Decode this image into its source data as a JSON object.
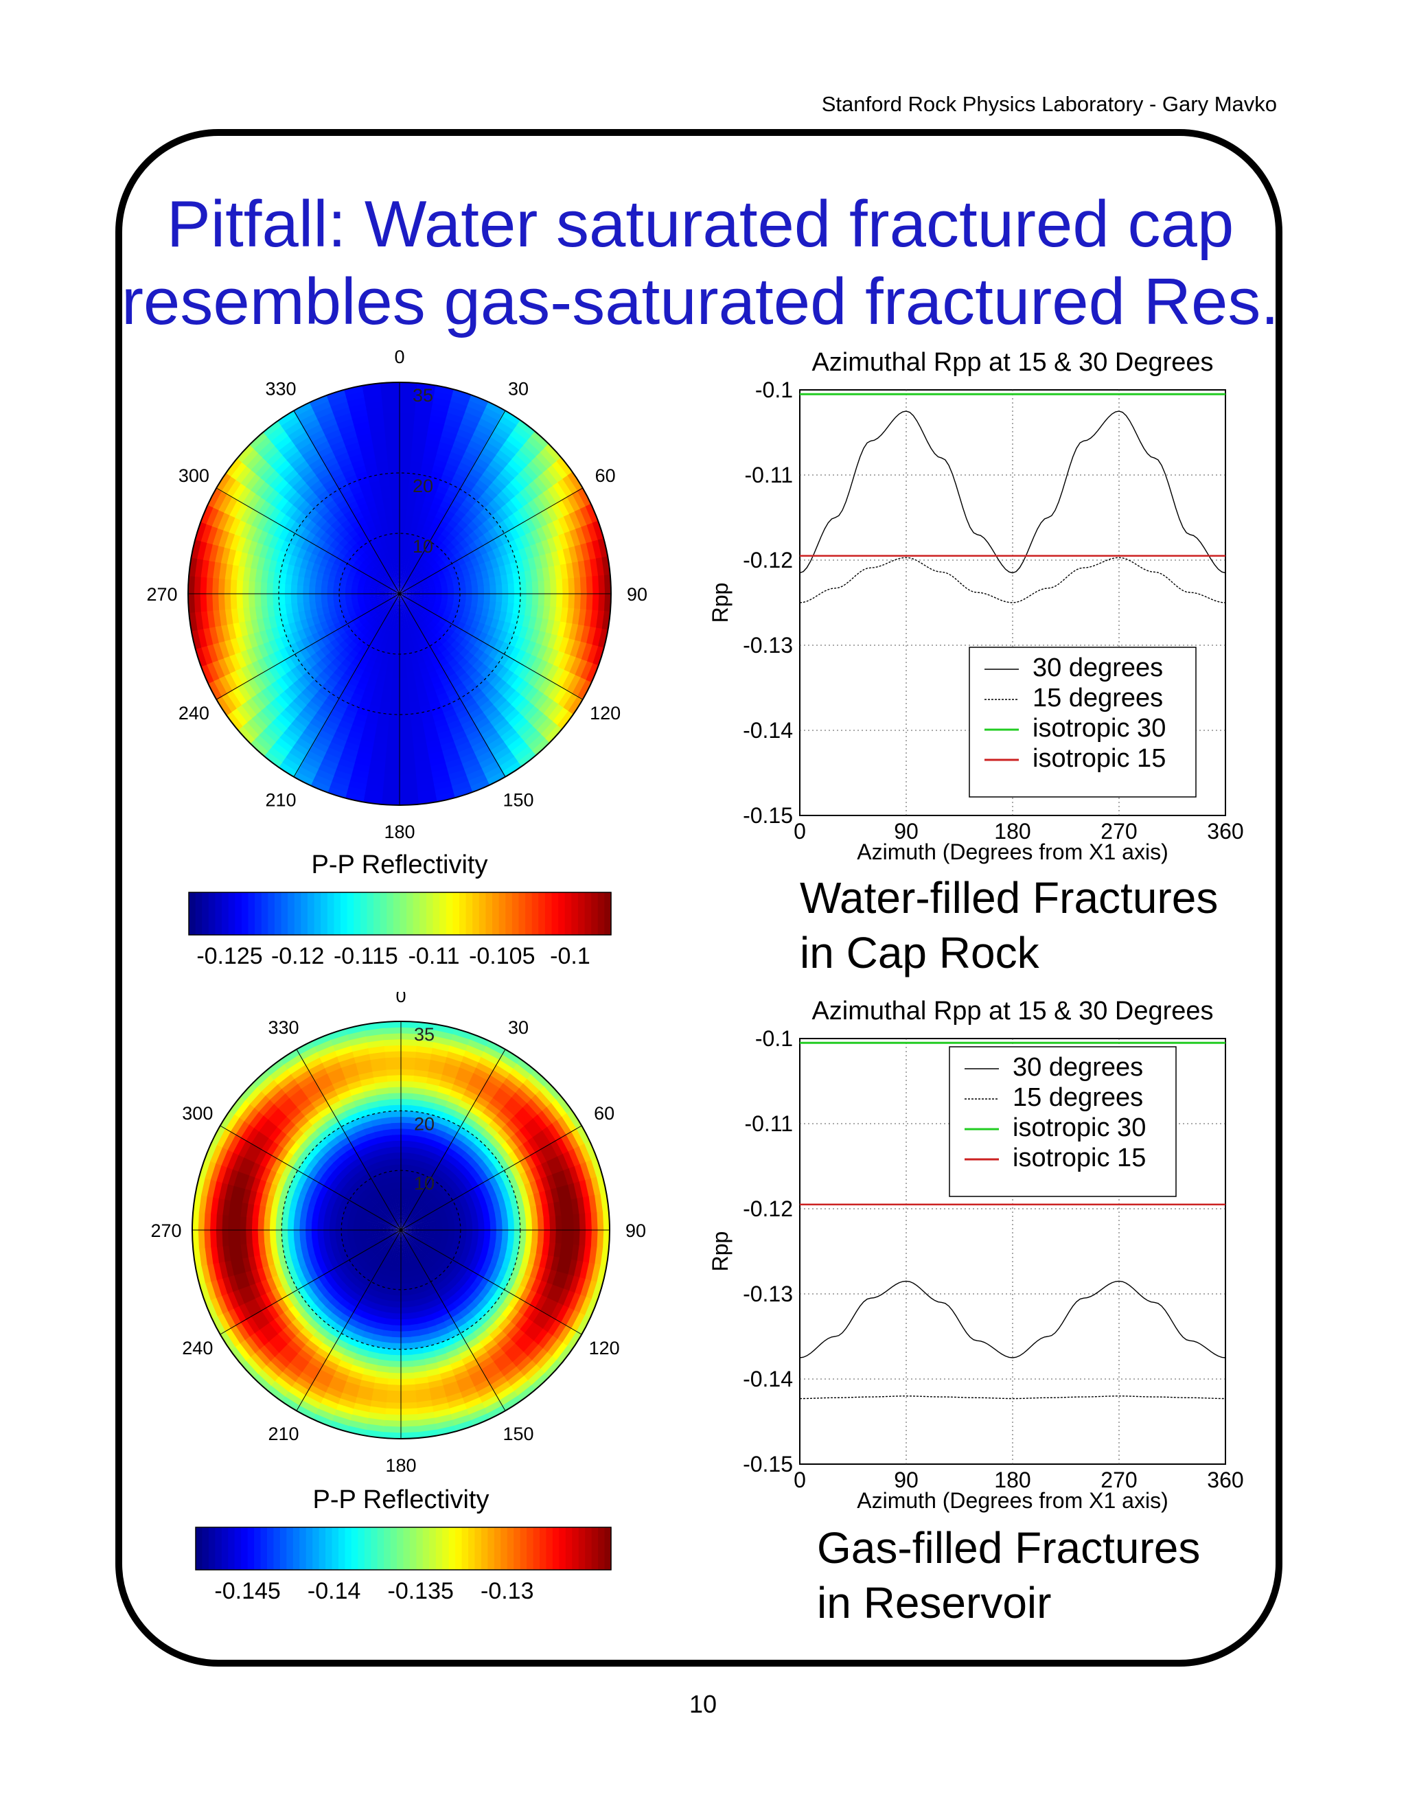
{
  "header": {
    "credit": "Stanford Rock Physics Laboratory -  Gary Mavko"
  },
  "title": {
    "line1": "Pitfall:  Water saturated fractured cap",
    "line2": "resembles gas-saturated fractured Res."
  },
  "captions": {
    "water": {
      "line1": "Water-filled Fractures",
      "line2": "in Cap Rock"
    },
    "gas": {
      "line1": "Gas-filled Fractures",
      "line2": "in Reservoir"
    }
  },
  "page_number": "10",
  "colors": {
    "title": "#1c1cc4",
    "isotropic30": "#22cc22",
    "isotropic15": "#cc2222",
    "curves": "#000000"
  },
  "chart_data": [
    {
      "type": "heatmap",
      "subtype": "polar",
      "label": "P-P Reflectivity",
      "angle_labels": [
        "0",
        "30",
        "60",
        "90",
        "120",
        "150",
        "180",
        "210",
        "240",
        "270",
        "300",
        "330"
      ],
      "radial_labels": [
        "10",
        "20",
        "35"
      ],
      "colorbar": {
        "ticks": [
          "-0.125",
          "-0.12",
          "-0.115",
          "-0.11",
          "-0.105",
          "-0.1"
        ],
        "range": [
          -0.128,
          -0.097
        ]
      },
      "field": {
        "base": -0.125,
        "amplitude": 0.028,
        "pattern": "sin2(azimuth) * (incidence/35)^2"
      }
    },
    {
      "type": "line",
      "title": "Azimuthal Rpp at 15 & 30 Degrees",
      "xlabel": "Azimuth (Degrees from X1 axis)",
      "ylabel": "Rpp",
      "xlim": [
        0,
        360
      ],
      "ylim": [
        -0.15,
        -0.1
      ],
      "xticks": [
        "0",
        "90",
        "180",
        "270",
        "360"
      ],
      "yticks": [
        "-0.1",
        "-0.11",
        "-0.12",
        "-0.13",
        "-0.14",
        "-0.15"
      ],
      "grid": true,
      "legend_position": "lower-right",
      "legend": [
        "30 degrees",
        "15 degrees",
        "isotropic 30",
        "isotropic 15"
      ],
      "x": [
        0,
        30,
        60,
        90,
        120,
        150,
        180,
        210,
        240,
        270,
        300,
        330,
        360
      ],
      "series": [
        {
          "name": "30 degrees",
          "values": [
            -0.1215,
            -0.115,
            -0.106,
            -0.1025,
            -0.108,
            -0.117,
            -0.1215,
            -0.115,
            -0.106,
            -0.1025,
            -0.108,
            -0.117,
            -0.1215
          ]
        },
        {
          "name": "15 degrees",
          "values": [
            -0.125,
            -0.1233,
            -0.1209,
            -0.1197,
            -0.1214,
            -0.1238,
            -0.125,
            -0.1233,
            -0.1209,
            -0.1197,
            -0.1214,
            -0.1238,
            -0.125
          ]
        },
        {
          "name": "isotropic 30",
          "values": [
            -0.1005,
            -0.1005,
            -0.1005,
            -0.1005,
            -0.1005,
            -0.1005,
            -0.1005,
            -0.1005,
            -0.1005,
            -0.1005,
            -0.1005,
            -0.1005,
            -0.1005
          ]
        },
        {
          "name": "isotropic 15",
          "values": [
            -0.1195,
            -0.1195,
            -0.1195,
            -0.1195,
            -0.1195,
            -0.1195,
            -0.1195,
            -0.1195,
            -0.1195,
            -0.1195,
            -0.1195,
            -0.1195,
            -0.1195
          ]
        }
      ]
    },
    {
      "type": "heatmap",
      "subtype": "polar",
      "label": "P-P Reflectivity",
      "angle_labels": [
        "0",
        "30",
        "60",
        "90",
        "120",
        "150",
        "180",
        "210",
        "240",
        "270",
        "300",
        "330"
      ],
      "radial_labels": [
        "10",
        "20",
        "35"
      ],
      "colorbar": {
        "ticks": [
          "-0.145",
          "-0.14",
          "-0.135",
          "-0.13"
        ],
        "range": [
          -0.148,
          -0.124
        ]
      },
      "field": {
        "base": -0.1475,
        "pattern": "ring: peaks near incidence 28, stronger at azimuth 90/270"
      }
    },
    {
      "type": "line",
      "title": "Azimuthal Rpp at 15 & 30 Degrees",
      "xlabel": "Azimuth (Degrees from X1 axis)",
      "ylabel": "Rpp",
      "xlim": [
        0,
        360
      ],
      "ylim": [
        -0.15,
        -0.1
      ],
      "xticks": [
        "0",
        "90",
        "180",
        "270",
        "360"
      ],
      "yticks": [
        "-0.1",
        "-0.11",
        "-0.12",
        "-0.13",
        "-0.14",
        "-0.15"
      ],
      "grid": true,
      "legend_position": "upper-right",
      "legend": [
        "30 degrees",
        "15 degrees",
        "isotropic 30",
        "isotropic 15"
      ],
      "x": [
        0,
        30,
        60,
        90,
        120,
        150,
        180,
        210,
        240,
        270,
        300,
        330,
        360
      ],
      "series": [
        {
          "name": "30 degrees",
          "values": [
            -0.1375,
            -0.135,
            -0.1305,
            -0.1285,
            -0.131,
            -0.1355,
            -0.1375,
            -0.135,
            -0.1305,
            -0.1285,
            -0.131,
            -0.1355,
            -0.1375
          ]
        },
        {
          "name": "15 degrees",
          "values": [
            -0.1423,
            -0.1422,
            -0.1421,
            -0.142,
            -0.1421,
            -0.1422,
            -0.1423,
            -0.1422,
            -0.1421,
            -0.142,
            -0.1421,
            -0.1422,
            -0.1423
          ]
        },
        {
          "name": "isotropic 30",
          "values": [
            -0.1005,
            -0.1005,
            -0.1005,
            -0.1005,
            -0.1005,
            -0.1005,
            -0.1005,
            -0.1005,
            -0.1005,
            -0.1005,
            -0.1005,
            -0.1005,
            -0.1005
          ]
        },
        {
          "name": "isotropic 15",
          "values": [
            -0.1195,
            -0.1195,
            -0.1195,
            -0.1195,
            -0.1195,
            -0.1195,
            -0.1195,
            -0.1195,
            -0.1195,
            -0.1195,
            -0.1195,
            -0.1195,
            -0.1195
          ]
        }
      ]
    }
  ]
}
